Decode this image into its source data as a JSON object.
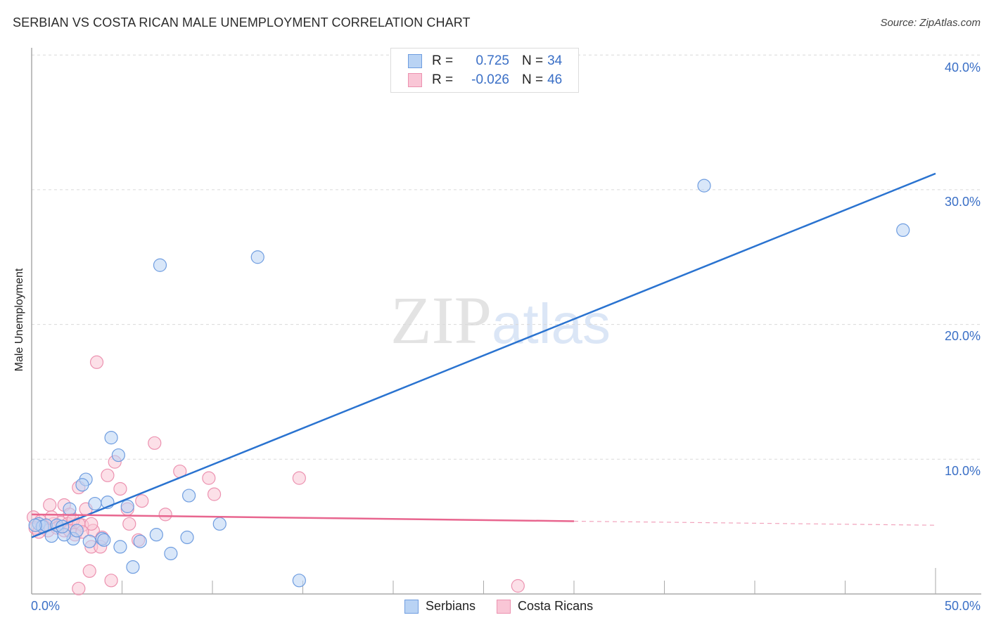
{
  "header": {
    "title": "SERBIAN VS COSTA RICAN MALE UNEMPLOYMENT CORRELATION CHART",
    "source": "Source: ZipAtlas.com"
  },
  "watermark": {
    "zip": "ZIP",
    "atlas": "atlas"
  },
  "legend": {
    "rows": [
      {
        "series": "Serbians",
        "r_label": "R =",
        "r_value": "0.725",
        "n_label": "N =",
        "n_value": "34"
      },
      {
        "series": "Costa Ricans",
        "r_label": "R =",
        "r_value": "-0.026",
        "n_label": "N =",
        "n_value": "46"
      }
    ]
  },
  "axes": {
    "y_label": "Male Unemployment",
    "y_ticks": [
      "40.0%",
      "30.0%",
      "20.0%",
      "10.0%"
    ],
    "x_tick_left": "0.0%",
    "x_tick_right": "50.0%"
  },
  "bottom_legend": [
    "Serbians",
    "Costa Ricans"
  ],
  "colors": {
    "serbians_fill": "#b9d3f4",
    "serbians_stroke": "#6f9de0",
    "serbians_line": "#2a73d0",
    "costa_ricans_fill": "#f9c6d6",
    "costa_ricans_stroke": "#ec92b0",
    "costa_ricans_line": "#e8668f",
    "tick_text": "#3a6fc6",
    "grid": "#d9d9d9"
  },
  "chart_data": {
    "type": "scatter",
    "title": "SERBIAN VS COSTA RICAN MALE UNEMPLOYMENT CORRELATION CHART",
    "xlabel": "",
    "ylabel": "Male Unemployment",
    "xlim": [
      0,
      50
    ],
    "ylim": [
      0,
      42
    ],
    "x_ticks": [
      "0.0%",
      "50.0%"
    ],
    "y_ticks": [
      "10.0%",
      "20.0%",
      "30.0%",
      "40.0%"
    ],
    "grid": true,
    "legend_position": "top-center",
    "series": [
      {
        "name": "Serbians",
        "R": 0.725,
        "N": 34,
        "trend": {
          "x": [
            0,
            50
          ],
          "y": [
            4.2,
            31.2
          ]
        },
        "points": [
          [
            37.2,
            30.3
          ],
          [
            48.2,
            27.0
          ],
          [
            7.1,
            24.4
          ],
          [
            12.5,
            25.0
          ],
          [
            4.4,
            11.6
          ],
          [
            4.8,
            10.3
          ],
          [
            3.0,
            8.5
          ],
          [
            2.8,
            8.1
          ],
          [
            4.2,
            6.8
          ],
          [
            3.5,
            6.7
          ],
          [
            5.3,
            6.5
          ],
          [
            2.1,
            6.3
          ],
          [
            8.7,
            7.3
          ],
          [
            10.4,
            5.2
          ],
          [
            6.9,
            4.4
          ],
          [
            8.6,
            4.2
          ],
          [
            3.2,
            3.9
          ],
          [
            4.9,
            3.5
          ],
          [
            6.0,
            3.9
          ],
          [
            3.9,
            4.1
          ],
          [
            4.0,
            4.0
          ],
          [
            5.6,
            2.0
          ],
          [
            7.7,
            3.0
          ],
          [
            14.8,
            1.0
          ],
          [
            2.3,
            4.1
          ],
          [
            1.8,
            4.4
          ],
          [
            1.1,
            4.3
          ],
          [
            0.4,
            5.2
          ],
          [
            0.6,
            5.0
          ],
          [
            0.8,
            5.1
          ],
          [
            1.4,
            5.1
          ],
          [
            1.7,
            5.0
          ],
          [
            2.5,
            4.7
          ],
          [
            0.2,
            5.1
          ]
        ]
      },
      {
        "name": "Costa Ricans",
        "R": -0.026,
        "N": 46,
        "trend": {
          "x": [
            0,
            30,
            50
          ],
          "y": [
            5.9,
            5.4,
            5.1
          ],
          "solid_until_x": 30
        },
        "points": [
          [
            3.6,
            17.2
          ],
          [
            6.8,
            11.2
          ],
          [
            4.6,
            9.8
          ],
          [
            4.2,
            8.8
          ],
          [
            8.2,
            9.1
          ],
          [
            9.8,
            8.6
          ],
          [
            14.8,
            8.6
          ],
          [
            2.6,
            7.9
          ],
          [
            4.9,
            7.8
          ],
          [
            10.1,
            7.4
          ],
          [
            6.1,
            6.9
          ],
          [
            1.8,
            6.6
          ],
          [
            3.0,
            6.3
          ],
          [
            5.3,
            6.3
          ],
          [
            7.4,
            5.9
          ],
          [
            2.1,
            5.9
          ],
          [
            1.0,
            6.6
          ],
          [
            5.4,
            5.2
          ],
          [
            2.8,
            5.1
          ],
          [
            3.4,
            4.7
          ],
          [
            5.9,
            4.0
          ],
          [
            3.9,
            4.2
          ],
          [
            3.3,
            3.5
          ],
          [
            3.8,
            3.5
          ],
          [
            3.2,
            1.7
          ],
          [
            4.4,
            1.0
          ],
          [
            2.6,
            0.4
          ],
          [
            26.9,
            0.6
          ],
          [
            0.1,
            5.7
          ],
          [
            0.5,
            5.4
          ],
          [
            0.7,
            5.0
          ],
          [
            1.2,
            5.2
          ],
          [
            1.6,
            5.3
          ],
          [
            2.0,
            5.2
          ],
          [
            2.3,
            5.5
          ],
          [
            2.6,
            5.2
          ],
          [
            0.2,
            4.9
          ],
          [
            0.9,
            4.7
          ],
          [
            1.4,
            4.9
          ],
          [
            1.8,
            4.7
          ],
          [
            2.1,
            4.7
          ],
          [
            0.4,
            4.6
          ],
          [
            1.1,
            5.7
          ],
          [
            2.4,
            4.4
          ],
          [
            3.3,
            5.2
          ],
          [
            2.8,
            4.6
          ]
        ]
      }
    ]
  }
}
